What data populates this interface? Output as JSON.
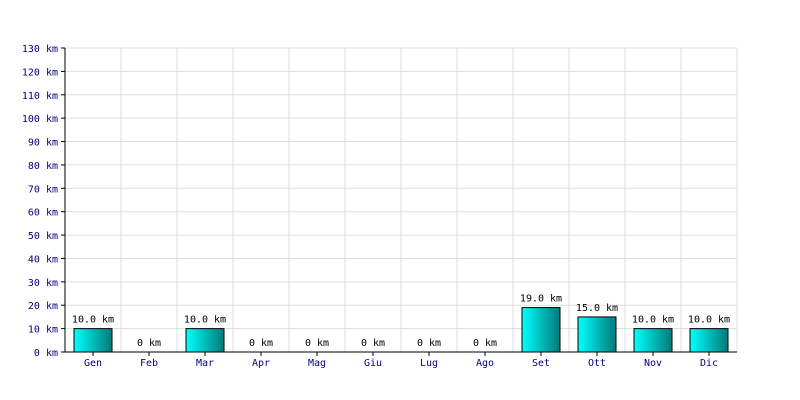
{
  "chart_data": {
    "type": "bar",
    "categories": [
      "Gen",
      "Feb",
      "Mar",
      "Apr",
      "Mag",
      "Giu",
      "Lug",
      "Ago",
      "Set",
      "Ott",
      "Nov",
      "Dic"
    ],
    "values": [
      10,
      0,
      10,
      0,
      0,
      0,
      0,
      0,
      19,
      15,
      10,
      10
    ],
    "data_labels": [
      "10.0 km",
      "0 km",
      "10.0 km",
      "0 km",
      "0 km",
      "0 km",
      "0 km",
      "0 km",
      "19.0 km",
      "15.0 km",
      "10.0 km",
      "10.0 km"
    ],
    "y_ticks": [
      "0 km",
      "10 km",
      "20 km",
      "30 km",
      "40 km",
      "50 km",
      "60 km",
      "70 km",
      "80 km",
      "90 km",
      "100 km",
      "110 km",
      "120 km",
      "130 km"
    ],
    "unit": "km",
    "ylim": [
      0,
      130
    ],
    "grid": true,
    "colors": {
      "bar_light": "#00ffff",
      "bar_dark": "#007a7a",
      "bar_outline": "#000000",
      "grid": "#dddddd",
      "axis": "#000000",
      "tick_text": "#000080"
    }
  }
}
